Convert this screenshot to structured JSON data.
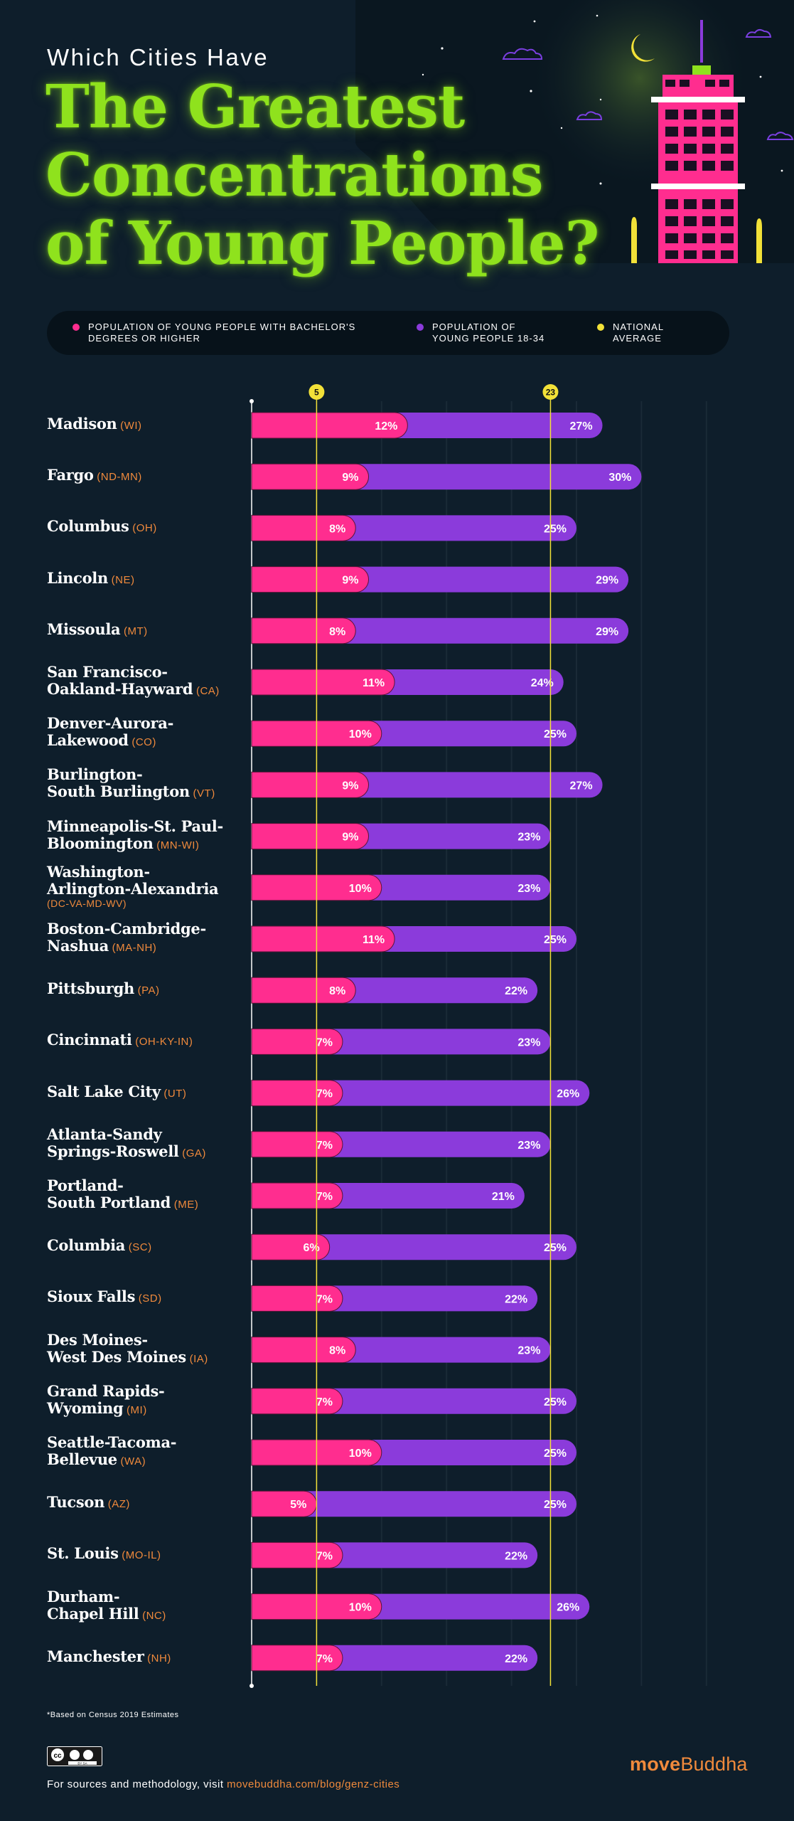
{
  "header": {
    "overline": "Which Cities Have",
    "title_lines": [
      "The Greatest",
      "Concentrations",
      "of Young People?"
    ]
  },
  "legend": {
    "items": [
      {
        "label": "Population of young people with bachelor's degrees or higher",
        "color": "#ff2d8f"
      },
      {
        "label": "Population of young people 18-34",
        "color": "#8b3bdb"
      },
      {
        "label": "National average",
        "color": "#f2e138"
      }
    ]
  },
  "chart_data": {
    "type": "bar",
    "orientation": "horizontal",
    "overlay": true,
    "xlim": [
      0,
      35
    ],
    "grid": true,
    "reference_lines": [
      {
        "series": "National average (degrees)",
        "value": 5,
        "label": "5"
      },
      {
        "series": "National average (18-34)",
        "value": 23,
        "label": "23"
      }
    ],
    "categories": [
      {
        "city": "Madison",
        "state": "(WI)"
      },
      {
        "city": "Fargo",
        "state": "(ND-MN)"
      },
      {
        "city": "Columbus",
        "state": "(OH)"
      },
      {
        "city": "Lincoln",
        "state": "(NE)"
      },
      {
        "city": "Missoula",
        "state": "(MT)"
      },
      {
        "city": "San Francisco-\nOakland-Hayward",
        "state": "(CA)"
      },
      {
        "city": "Denver-Aurora-\nLakewood",
        "state": "(CO)"
      },
      {
        "city": "Burlington-\nSouth Burlington",
        "state": "(VT)"
      },
      {
        "city": "Minneapolis-St. Paul-\nBloomington",
        "state": "(MN-WI)"
      },
      {
        "city": "Washington-\nArlington-Alexandria",
        "state": "(DC-VA-MD-WV)",
        "state_newline": true
      },
      {
        "city": "Boston-Cambridge-\nNashua",
        "state": "(MA-NH)"
      },
      {
        "city": "Pittsburgh",
        "state": "(PA)"
      },
      {
        "city": "Cincinnati",
        "state": "(OH-KY-IN)"
      },
      {
        "city": "Salt Lake City",
        "state": "(UT)"
      },
      {
        "city": "Atlanta-Sandy\nSprings-Roswell",
        "state": "(GA)"
      },
      {
        "city": "Portland-\nSouth Portland",
        "state": "(ME)"
      },
      {
        "city": "Columbia",
        "state": "(SC)"
      },
      {
        "city": "Sioux Falls",
        "state": "(SD)"
      },
      {
        "city": "Des Moines-\nWest Des Moines",
        "state": "(IA)"
      },
      {
        "city": "Grand Rapids-\nWyoming",
        "state": "(MI)"
      },
      {
        "city": "Seattle-Tacoma-\nBellevue",
        "state": "(WA)"
      },
      {
        "city": "Tucson",
        "state": "(AZ)"
      },
      {
        "city": "St. Louis",
        "state": "(MO-IL)"
      },
      {
        "city": "Durham-\nChapel Hill",
        "state": "(NC)"
      },
      {
        "city": "Manchester",
        "state": "(NH)"
      }
    ],
    "series": [
      {
        "name": "Population of young people 18-34",
        "color": "#8b3bdb",
        "values": [
          27,
          30,
          25,
          29,
          29,
          24,
          25,
          27,
          23,
          23,
          25,
          22,
          23,
          26,
          23,
          21,
          25,
          22,
          23,
          25,
          25,
          25,
          22,
          26,
          22
        ]
      },
      {
        "name": "Population of young people with bachelor's degrees or higher",
        "color": "#ff2d8f",
        "values": [
          12,
          9,
          8,
          9,
          8,
          11,
          10,
          9,
          9,
          10,
          11,
          8,
          7,
          7,
          7,
          7,
          6,
          7,
          8,
          7,
          10,
          5,
          7,
          10,
          7
        ]
      }
    ],
    "value_suffix": "%"
  },
  "footer": {
    "footnote": "*Based on Census 2019 Estimates",
    "sources_prefix": "For sources and methodology, visit ",
    "sources_url": "movebuddha.com/blog/genz-cities",
    "brand_a": "move",
    "brand_b": "Buddha",
    "cc_letters": "BY SA"
  },
  "colors": {
    "background": "#0e1e2b",
    "title_green": "#8fe21d",
    "accent_orange": "#f08a3c",
    "pink": "#ff2d8f",
    "purple": "#8b3bdb",
    "yellow": "#f2e138"
  }
}
